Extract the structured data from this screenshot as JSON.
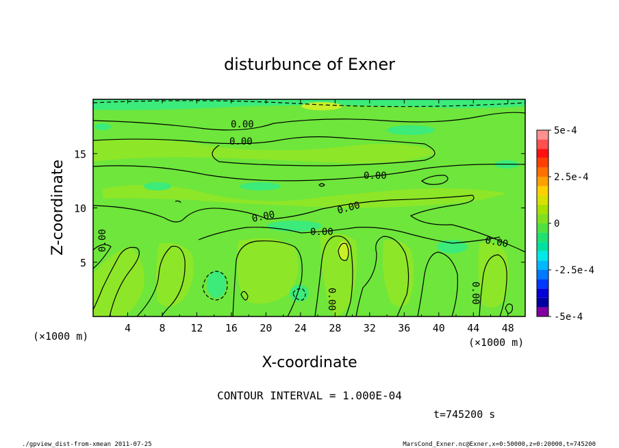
{
  "chart_data": {
    "type": "contour",
    "title": "disturbunce of Exner",
    "xlabel": "X-coordinate",
    "ylabel": "Z-coordinate",
    "x_unit": "(×1000 m)",
    "y_unit": "(×1000 m)",
    "xlim": [
      0,
      50
    ],
    "ylim": [
      0,
      20
    ],
    "x_ticks": [
      "4",
      "8",
      "12",
      "16",
      "20",
      "24",
      "28",
      "32",
      "36",
      "40",
      "44",
      "48"
    ],
    "y_ticks": [
      "5",
      "10",
      "15"
    ],
    "x_tick_values": [
      4,
      8,
      12,
      16,
      20,
      24,
      28,
      32,
      36,
      40,
      44,
      48
    ],
    "y_tick_values": [
      5,
      10,
      15
    ],
    "contour_interval_text": "CONTOUR INTERVAL = 1.000E-04",
    "contour_label": "0.00",
    "colorbar": {
      "range": [
        -0.0005,
        0.0005
      ],
      "ticks": [
        "5e-4",
        "2.5e-4",
        "0",
        "-2.5e-4",
        "-5e-4"
      ],
      "colors": [
        "#7f009f",
        "#0000a0",
        "#0000d8",
        "#0038ff",
        "#0078ff",
        "#00b8ff",
        "#00e8e8",
        "#00e0a0",
        "#20e070",
        "#50e040",
        "#80e020",
        "#a8e000",
        "#d8e000",
        "#ffd000",
        "#ffa000",
        "#ff7000",
        "#ff4000",
        "#ff1010",
        "#ff5050",
        "#ff9090"
      ]
    },
    "time_text": "t=745200 s"
  },
  "footer": {
    "left": "./gpview_dist-from-xmean  2011-07-25",
    "right": "MarsCond_Exner.nc@Exner,x=0:50000,z=0:20000,t=745200"
  },
  "colors": {
    "background_field": "#6ee63c",
    "light_field": "#8ee628",
    "cyan_field": "#3ceb7a",
    "yellow_field": "#c8f02a"
  }
}
